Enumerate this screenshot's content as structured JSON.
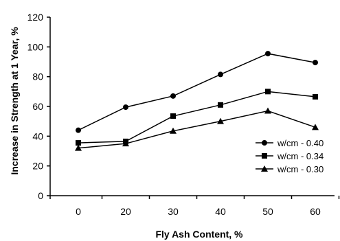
{
  "chart_data": {
    "type": "line",
    "title": "",
    "xlabel": "Fly Ash Content, %",
    "ylabel": "Increase in Strength at 1 Year, %",
    "categories": [
      "0",
      "20",
      "30",
      "40",
      "50",
      "60"
    ],
    "ylim": [
      0,
      120
    ],
    "yticks": [
      "0",
      "20",
      "40",
      "60",
      "80",
      "100",
      "120"
    ],
    "grid": false,
    "legend_position": "bottom-right",
    "series": [
      {
        "name": "w/cm - 0.40",
        "marker": "circle",
        "values": [
          44,
          59.5,
          67,
          81.5,
          95.5,
          89.5
        ]
      },
      {
        "name": "w/cm - 0.34",
        "marker": "square",
        "values": [
          35.5,
          36.5,
          53.5,
          61,
          70,
          66.5
        ]
      },
      {
        "name": "w/cm - 0.30",
        "marker": "triangle",
        "values": [
          32,
          35,
          43.5,
          50,
          57,
          46
        ]
      }
    ],
    "colors": {
      "line": "#000000",
      "background": "#ffffff"
    }
  }
}
